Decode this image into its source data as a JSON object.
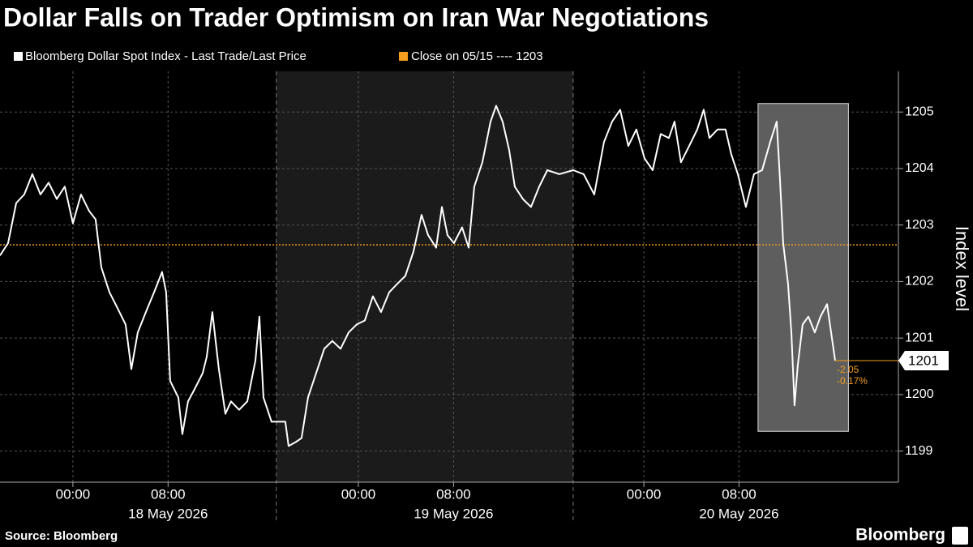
{
  "chart_data": {
    "type": "line",
    "title": "Dollar Falls on Trader Optimism on Iran War Negotiations",
    "series": [
      {
        "name": "Bloomberg Dollar Spot Index - Last Trade/Last Price",
        "color": "#ffffff",
        "x": [
          -6.13,
          -5.45,
          -4.77,
          -4.09,
          -3.41,
          -2.73,
          -2.04,
          -1.36,
          -0.68,
          0,
          0.68,
          1.36,
          1.91,
          2.39,
          3.07,
          3.75,
          4.43,
          4.91,
          5.45,
          6.13,
          6.82,
          7.5,
          7.84,
          8.18,
          8.86,
          9.2,
          9.68,
          10.22,
          10.91,
          11.25,
          11.72,
          12.27,
          12.82,
          13.29,
          13.97,
          14.66,
          15.34,
          15.68,
          16.02,
          16.7,
          17.86,
          18.13,
          18.74,
          19.22,
          19.77,
          20.45,
          21.13,
          21.81,
          22.5,
          23.18,
          23.86,
          24.54,
          25.22,
          25.9,
          26.59,
          27.27,
          27.95,
          28.63,
          29.31,
          29.86,
          30.54,
          31.02,
          31.49,
          32.04,
          32.72,
          33.27,
          33.74,
          34.42,
          35.11,
          35.58,
          36.13,
          36.67,
          37.15,
          37.83,
          38.51,
          39.2,
          39.88,
          40.9,
          42.06,
          42.94,
          43.83,
          44.65,
          45.33,
          46.01,
          46.69,
          47.37,
          48.06,
          48.74,
          49.42,
          50.1,
          50.58,
          51.12,
          51.81,
          52.49,
          53.03,
          53.51,
          54.19,
          54.87,
          55.35,
          55.9,
          56.58,
          57.26,
          57.94,
          58.62,
          59.17,
          59.44,
          59.71,
          60.12,
          60.4,
          60.67,
          60.94,
          61.35,
          61.83,
          62.37,
          62.85,
          63.4,
          64.08
        ],
        "values": [
          1202.46,
          1202.68,
          1203.39,
          1203.54,
          1203.9,
          1203.54,
          1203.75,
          1203.46,
          1203.68,
          1203.03,
          1203.54,
          1203.25,
          1203.1,
          1202.25,
          1201.81,
          1201.53,
          1201.24,
          1200.45,
          1201.1,
          1201.46,
          1201.81,
          1202.17,
          1201.81,
          1200.24,
          1199.95,
          1199.3,
          1199.88,
          1200.09,
          1200.38,
          1200.67,
          1201.46,
          1200.45,
          1199.66,
          1199.88,
          1199.73,
          1199.88,
          1200.6,
          1201.38,
          1199.95,
          1199.52,
          1199.52,
          1199.09,
          1199.16,
          1199.23,
          1199.95,
          1200.38,
          1200.81,
          1200.95,
          1200.81,
          1201.1,
          1201.24,
          1201.31,
          1201.74,
          1201.46,
          1201.81,
          1201.96,
          1202.1,
          1202.53,
          1203.18,
          1202.82,
          1202.6,
          1203.32,
          1202.82,
          1202.68,
          1202.96,
          1202.6,
          1203.68,
          1204.11,
          1204.83,
          1205.11,
          1204.83,
          1204.33,
          1203.68,
          1203.46,
          1203.32,
          1203.68,
          1203.97,
          1203.9,
          1203.97,
          1203.9,
          1203.54,
          1204.47,
          1204.83,
          1205.04,
          1204.4,
          1204.69,
          1204.18,
          1203.97,
          1204.61,
          1204.54,
          1204.83,
          1204.11,
          1204.4,
          1204.69,
          1205.04,
          1204.54,
          1204.69,
          1204.69,
          1204.25,
          1203.9,
          1203.32,
          1203.9,
          1203.97,
          1204.47,
          1204.83,
          1203.82,
          1202.68,
          1201.96,
          1201.1,
          1199.81,
          1200.52,
          1201.24,
          1201.38,
          1201.1,
          1201.38,
          1201.6,
          1200.6
        ]
      }
    ],
    "reference": {
      "name": "Close on 05/15 ---- 1203",
      "value": 1202.65,
      "color": "#f39c1e"
    },
    "xlim": [
      -6.13,
      69.4
    ],
    "xticks": [
      {
        "value": 0,
        "label": "00:00"
      },
      {
        "value": 8,
        "label": "08:00"
      },
      {
        "value": 24,
        "label": "00:00"
      },
      {
        "value": 32,
        "label": "08:00"
      },
      {
        "value": 48,
        "label": "00:00"
      },
      {
        "value": 56,
        "label": "08:00"
      }
    ],
    "days": [
      "18 May 2026",
      "19 May 2026",
      "20 May 2026"
    ],
    "session_breaks": [
      17.1,
      42.06
    ],
    "highlight": {
      "x": [
        57.6,
        65.2
      ],
      "y": [
        1199.35,
        1205.15
      ]
    },
    "ylim": [
      1198.45,
      1205.72
    ],
    "yticks": [
      1199,
      1200,
      1201,
      1202,
      1203,
      1204,
      1205
    ],
    "y_label": "Index level",
    "grid": true,
    "last_value_label": "1201",
    "change_labels": [
      "-2.05",
      "-0.17%"
    ],
    "source": "Source: Bloomberg",
    "brand": "Bloomberg"
  }
}
